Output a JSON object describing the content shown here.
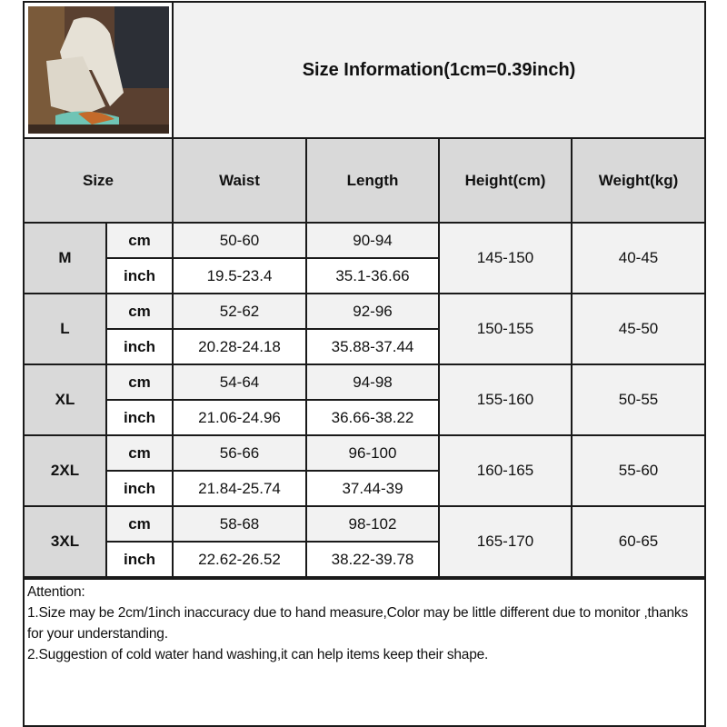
{
  "title": "Size Information(1cm=0.39inch)",
  "photo_label": "product photo: white wide-leg pants with sneakers",
  "headers": [
    "Size",
    "Waist",
    "Length",
    "Height(cm)",
    "Weight(kg)"
  ],
  "units": {
    "cm": "cm",
    "inch": "inch"
  },
  "sizes": [
    {
      "size": "M",
      "waist_cm": "50-60",
      "waist_inch": "19.5-23.4",
      "length_cm": "90-94",
      "length_inch": "35.1-36.66",
      "height": "145-150",
      "weight": "40-45"
    },
    {
      "size": "L",
      "waist_cm": "52-62",
      "waist_inch": "20.28-24.18",
      "length_cm": "92-96",
      "length_inch": "35.88-37.44",
      "height": "150-155",
      "weight": "45-50"
    },
    {
      "size": "XL",
      "waist_cm": "54-64",
      "waist_inch": "21.06-24.96",
      "length_cm": "94-98",
      "length_inch": "36.66-38.22",
      "height": "155-160",
      "weight": "50-55"
    },
    {
      "size": "2XL",
      "waist_cm": "56-66",
      "waist_inch": "21.84-25.74",
      "length_cm": "96-100",
      "length_inch": "37.44-39",
      "height": "160-165",
      "weight": "55-60"
    },
    {
      "size": "3XL",
      "waist_cm": "58-68",
      "waist_inch": "22.62-26.52",
      "length_cm": "98-102",
      "length_inch": "38.22-39.78",
      "height": "165-170",
      "weight": "60-65"
    }
  ],
  "attention": {
    "heading": "Attention:",
    "line1": "1.Size may be 2cm/1inch inaccuracy due to hand measure,Color may be little different due to monitor ,thanks for your understanding.",
    "line2": "2.Suggestion of cold water hand washing,it can help items keep their shape."
  },
  "colors": {
    "header_bg": "#d9d9d9",
    "light_bg": "#f2f2f2",
    "border": "#1a1a1a"
  }
}
